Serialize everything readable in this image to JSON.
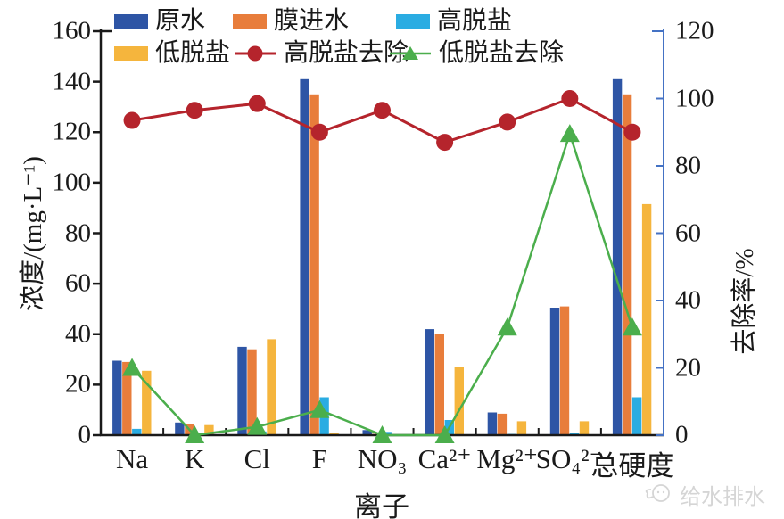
{
  "chart_data": {
    "type": "bar",
    "combo": "grouped bars with two line series on secondary axis",
    "title": "",
    "xlabel": "离子",
    "ylabel_left": "浓度/(mg·L⁻¹)",
    "ylabel_right": "去除率/%",
    "ylim_left": [
      0,
      160
    ],
    "ylim_right": [
      0,
      120
    ],
    "ytick_step_left": 20,
    "ytick_step_right": 20,
    "grid": false,
    "legend_position": "top-left, two rows",
    "categories": [
      "Na",
      "K",
      "Cl",
      "F",
      "NO₃",
      "Ca²⁺",
      "Mg²⁺",
      "SO₄²⁻",
      "总硬度"
    ],
    "category_slugs": [
      "na",
      "k",
      "cl",
      "f",
      "no3",
      "ca",
      "mg",
      "so4",
      "total-hardness"
    ],
    "bar_series": [
      {
        "id": "raw-water",
        "name": "原水",
        "color": "#2E55A5",
        "values": [
          29.5,
          5,
          35,
          141,
          2,
          42,
          9,
          50.5,
          141
        ]
      },
      {
        "id": "membrane-feed",
        "name": "膜进水",
        "color": "#E87D3B",
        "values": [
          29,
          4.5,
          34,
          135,
          0.5,
          40,
          8.5,
          51,
          135
        ]
      },
      {
        "id": "high-desal",
        "name": "高脱盐",
        "color": "#2AACE2",
        "values": [
          2.5,
          1,
          1.5,
          15,
          1.3,
          6,
          0.5,
          1,
          15
        ]
      },
      {
        "id": "low-desal",
        "name": "低脱盐",
        "color": "#F5B53D",
        "values": [
          25.5,
          4,
          38,
          1,
          0.3,
          27,
          5.5,
          5.5,
          91.5
        ]
      }
    ],
    "line_series": [
      {
        "id": "high-desal-removal",
        "name": "高脱盐去除",
        "color": "#B5242C",
        "marker": "circle",
        "axis": "right",
        "values": [
          93.5,
          96.5,
          98.5,
          90,
          96.5,
          87,
          93,
          100,
          90
        ]
      },
      {
        "id": "low-desal-removal",
        "name": "低脱盐去除",
        "color": "#4BAE4C",
        "marker": "triangle",
        "axis": "right",
        "values": [
          20,
          0,
          2.5,
          7.5,
          0,
          0,
          32,
          89.5,
          32
        ]
      }
    ],
    "axis_colors": {
      "left": "#1A1A1A",
      "bottom": "#1A1A1A",
      "right": "#4472C4"
    }
  },
  "watermark": {
    "text": "给水排水"
  }
}
